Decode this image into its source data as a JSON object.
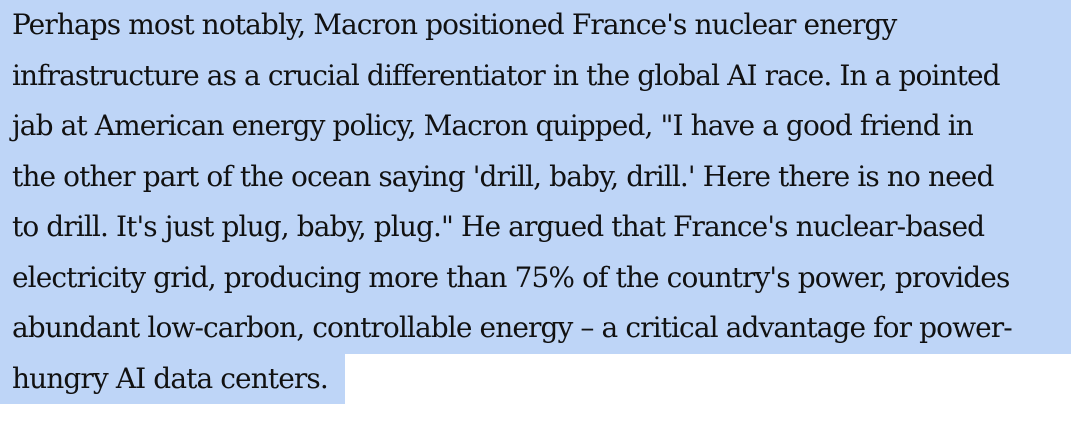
{
  "highlight_color": "#bed5f7",
  "paragraph": {
    "lines": [
      "Perhaps most notably, Macron positioned France's nuclear energy",
      "infrastructure as a crucial differentiator in the global AI race. In a pointed",
      "jab at American energy policy, Macron quipped, \"I have a good friend in",
      "the other part of the ocean saying 'drill, baby, drill.' Here there is no need",
      "to drill. It's just plug, baby, plug.\" He argued that France's nuclear-based",
      "electricity grid, producing more than 75% of the country's power, provides",
      "abundant low-carbon, controllable energy – a critical advantage for power-",
      "hungry AI data centers."
    ]
  }
}
